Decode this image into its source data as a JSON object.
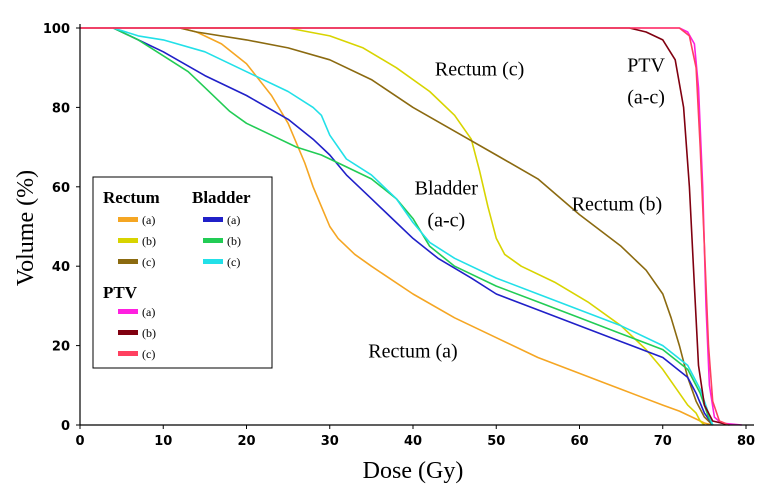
{
  "chart_data": {
    "type": "line",
    "title": "",
    "xlabel": "Dose (Gy)",
    "ylabel": "Volume (%)",
    "xlim": [
      0,
      80
    ],
    "ylim": [
      0,
      100
    ],
    "xticks": [
      "0",
      "10",
      "20",
      "30",
      "40",
      "50",
      "60",
      "70",
      "80"
    ],
    "yticks": [
      "0",
      "20",
      "40",
      "60",
      "80",
      "100"
    ],
    "grid": false,
    "legend": {
      "placement": "left",
      "groups": [
        {
          "title": "Rectum",
          "items": [
            {
              "label": "(a)",
              "series": "rectum_a"
            },
            {
              "label": "(b)",
              "series": "rectum_b"
            },
            {
              "label": "(c)",
              "series": "rectum_c"
            }
          ]
        },
        {
          "title": "Bladder",
          "items": [
            {
              "label": "(a)",
              "series": "bladder_a"
            },
            {
              "label": "(b)",
              "series": "bladder_b"
            },
            {
              "label": "(c)",
              "series": "bladder_c"
            }
          ]
        },
        {
          "title": "PTV",
          "items": [
            {
              "label": "(a)",
              "series": "ptv_a"
            },
            {
              "label": "(b)",
              "series": "ptv_b"
            },
            {
              "label": "(c)",
              "series": "ptv_c"
            }
          ]
        }
      ]
    },
    "annotations": [
      {
        "text": "Rectum (c)",
        "x": 48,
        "y": 88
      },
      {
        "text": "PTV",
        "x": 68,
        "y": 89
      },
      {
        "text": "(a-c)",
        "x": 68,
        "y": 81
      },
      {
        "text": "Bladder",
        "x": 44,
        "y": 58
      },
      {
        "text": "(a-c)",
        "x": 44,
        "y": 50
      },
      {
        "text": "Rectum (b)",
        "x": 64.5,
        "y": 54
      },
      {
        "text": "Rectum (a)",
        "x": 40,
        "y": 17
      }
    ],
    "series": [
      {
        "id": "rectum_a",
        "color": "#f5a623",
        "points": [
          [
            12,
            100
          ],
          [
            14,
            99
          ],
          [
            17,
            96
          ],
          [
            20,
            91
          ],
          [
            23,
            83
          ],
          [
            25,
            76
          ],
          [
            27,
            66
          ],
          [
            28,
            60
          ],
          [
            29,
            55
          ],
          [
            30,
            50
          ],
          [
            31,
            47
          ],
          [
            33,
            43
          ],
          [
            35,
            40
          ],
          [
            40,
            33
          ],
          [
            45,
            27
          ],
          [
            50,
            22
          ],
          [
            55,
            17
          ],
          [
            60,
            13
          ],
          [
            65,
            9
          ],
          [
            70,
            5
          ],
          [
            72,
            3.5
          ],
          [
            74,
            1.5
          ],
          [
            75,
            0.5
          ],
          [
            76,
            0
          ]
        ]
      },
      {
        "id": "rectum_b",
        "color": "#d8d400",
        "points": [
          [
            12,
            100
          ],
          [
            25,
            100
          ],
          [
            30,
            98
          ],
          [
            34,
            95
          ],
          [
            38,
            90
          ],
          [
            42,
            84
          ],
          [
            45,
            78
          ],
          [
            47,
            72
          ],
          [
            48,
            64
          ],
          [
            49,
            55
          ],
          [
            50,
            47
          ],
          [
            51,
            43
          ],
          [
            53,
            40
          ],
          [
            57,
            36
          ],
          [
            61,
            31
          ],
          [
            65,
            25
          ],
          [
            68,
            19
          ],
          [
            70,
            14
          ],
          [
            72,
            8
          ],
          [
            73,
            5
          ],
          [
            74,
            3
          ],
          [
            74.5,
            1
          ],
          [
            75,
            0
          ]
        ]
      },
      {
        "id": "rectum_c",
        "color": "#8b6a10",
        "points": [
          [
            12,
            100
          ],
          [
            14,
            99
          ],
          [
            20,
            97
          ],
          [
            25,
            95
          ],
          [
            30,
            92
          ],
          [
            35,
            87
          ],
          [
            40,
            80
          ],
          [
            45,
            74
          ],
          [
            50,
            68
          ],
          [
            55,
            62
          ],
          [
            60,
            53
          ],
          [
            65,
            45
          ],
          [
            68,
            39
          ],
          [
            70,
            33
          ],
          [
            71,
            27
          ],
          [
            72,
            20
          ],
          [
            73,
            12
          ],
          [
            74,
            6
          ],
          [
            75,
            2
          ],
          [
            76,
            0
          ]
        ]
      },
      {
        "id": "bladder_a",
        "color": "#2020c8",
        "points": [
          [
            4,
            100
          ],
          [
            7,
            97
          ],
          [
            10,
            94
          ],
          [
            15,
            88
          ],
          [
            20,
            83
          ],
          [
            25,
            77
          ],
          [
            28,
            72
          ],
          [
            30,
            68
          ],
          [
            32,
            63
          ],
          [
            35,
            57
          ],
          [
            38,
            51
          ],
          [
            40,
            47
          ],
          [
            43,
            42
          ],
          [
            47,
            37
          ],
          [
            50,
            33
          ],
          [
            55,
            29
          ],
          [
            60,
            25
          ],
          [
            65,
            21
          ],
          [
            70,
            17
          ],
          [
            73,
            12
          ],
          [
            74,
            8
          ],
          [
            75,
            3
          ],
          [
            76,
            0
          ]
        ]
      },
      {
        "id": "bladder_b",
        "color": "#22cc55",
        "points": [
          [
            4,
            100
          ],
          [
            7,
            97
          ],
          [
            10,
            93
          ],
          [
            13,
            89
          ],
          [
            15,
            85
          ],
          [
            18,
            79
          ],
          [
            20,
            76
          ],
          [
            23,
            73
          ],
          [
            26,
            70
          ],
          [
            29,
            68
          ],
          [
            32,
            65
          ],
          [
            35,
            62
          ],
          [
            38,
            57
          ],
          [
            40,
            52
          ],
          [
            42,
            45
          ],
          [
            45,
            40
          ],
          [
            50,
            35
          ],
          [
            55,
            31
          ],
          [
            60,
            27
          ],
          [
            65,
            23
          ],
          [
            70,
            19
          ],
          [
            73,
            14
          ],
          [
            74.5,
            8
          ],
          [
            75.5,
            2
          ],
          [
            76,
            0
          ]
        ]
      },
      {
        "id": "bladder_c",
        "color": "#22e0e8",
        "points": [
          [
            4,
            100
          ],
          [
            7,
            98
          ],
          [
            10,
            97
          ],
          [
            15,
            94
          ],
          [
            20,
            89
          ],
          [
            25,
            84
          ],
          [
            28,
            80
          ],
          [
            29,
            78
          ],
          [
            30,
            73
          ],
          [
            32,
            67
          ],
          [
            35,
            63
          ],
          [
            38,
            57
          ],
          [
            40,
            51
          ],
          [
            42,
            46
          ],
          [
            45,
            42
          ],
          [
            50,
            37
          ],
          [
            55,
            33
          ],
          [
            60,
            29
          ],
          [
            65,
            25
          ],
          [
            70,
            20
          ],
          [
            73,
            15
          ],
          [
            74.5,
            9
          ],
          [
            75.5,
            3
          ],
          [
            76,
            0
          ]
        ]
      },
      {
        "id": "ptv_a",
        "color": "#ff20e0",
        "points": [
          [
            0,
            100
          ],
          [
            72,
            100
          ],
          [
            73,
            99
          ],
          [
            73.8,
            96
          ],
          [
            74.3,
            85
          ],
          [
            74.8,
            60
          ],
          [
            75.2,
            30
          ],
          [
            75.6,
            10
          ],
          [
            76.2,
            2
          ],
          [
            77,
            0.5
          ],
          [
            79.5,
            0
          ]
        ]
      },
      {
        "id": "ptv_b",
        "color": "#800010",
        "points": [
          [
            0,
            100
          ],
          [
            66,
            100
          ],
          [
            68,
            99
          ],
          [
            70,
            97
          ],
          [
            71.5,
            92
          ],
          [
            72.5,
            80
          ],
          [
            73.2,
            60
          ],
          [
            73.8,
            35
          ],
          [
            74.3,
            15
          ],
          [
            75,
            5
          ],
          [
            76,
            1
          ],
          [
            78,
            0
          ]
        ]
      },
      {
        "id": "ptv_c",
        "color": "#ff4060",
        "points": [
          [
            0,
            100
          ],
          [
            72,
            100
          ],
          [
            73.2,
            98
          ],
          [
            74,
            90
          ],
          [
            74.5,
            70
          ],
          [
            75,
            45
          ],
          [
            75.5,
            20
          ],
          [
            76,
            6
          ],
          [
            76.8,
            1
          ],
          [
            78,
            0
          ]
        ]
      }
    ]
  }
}
